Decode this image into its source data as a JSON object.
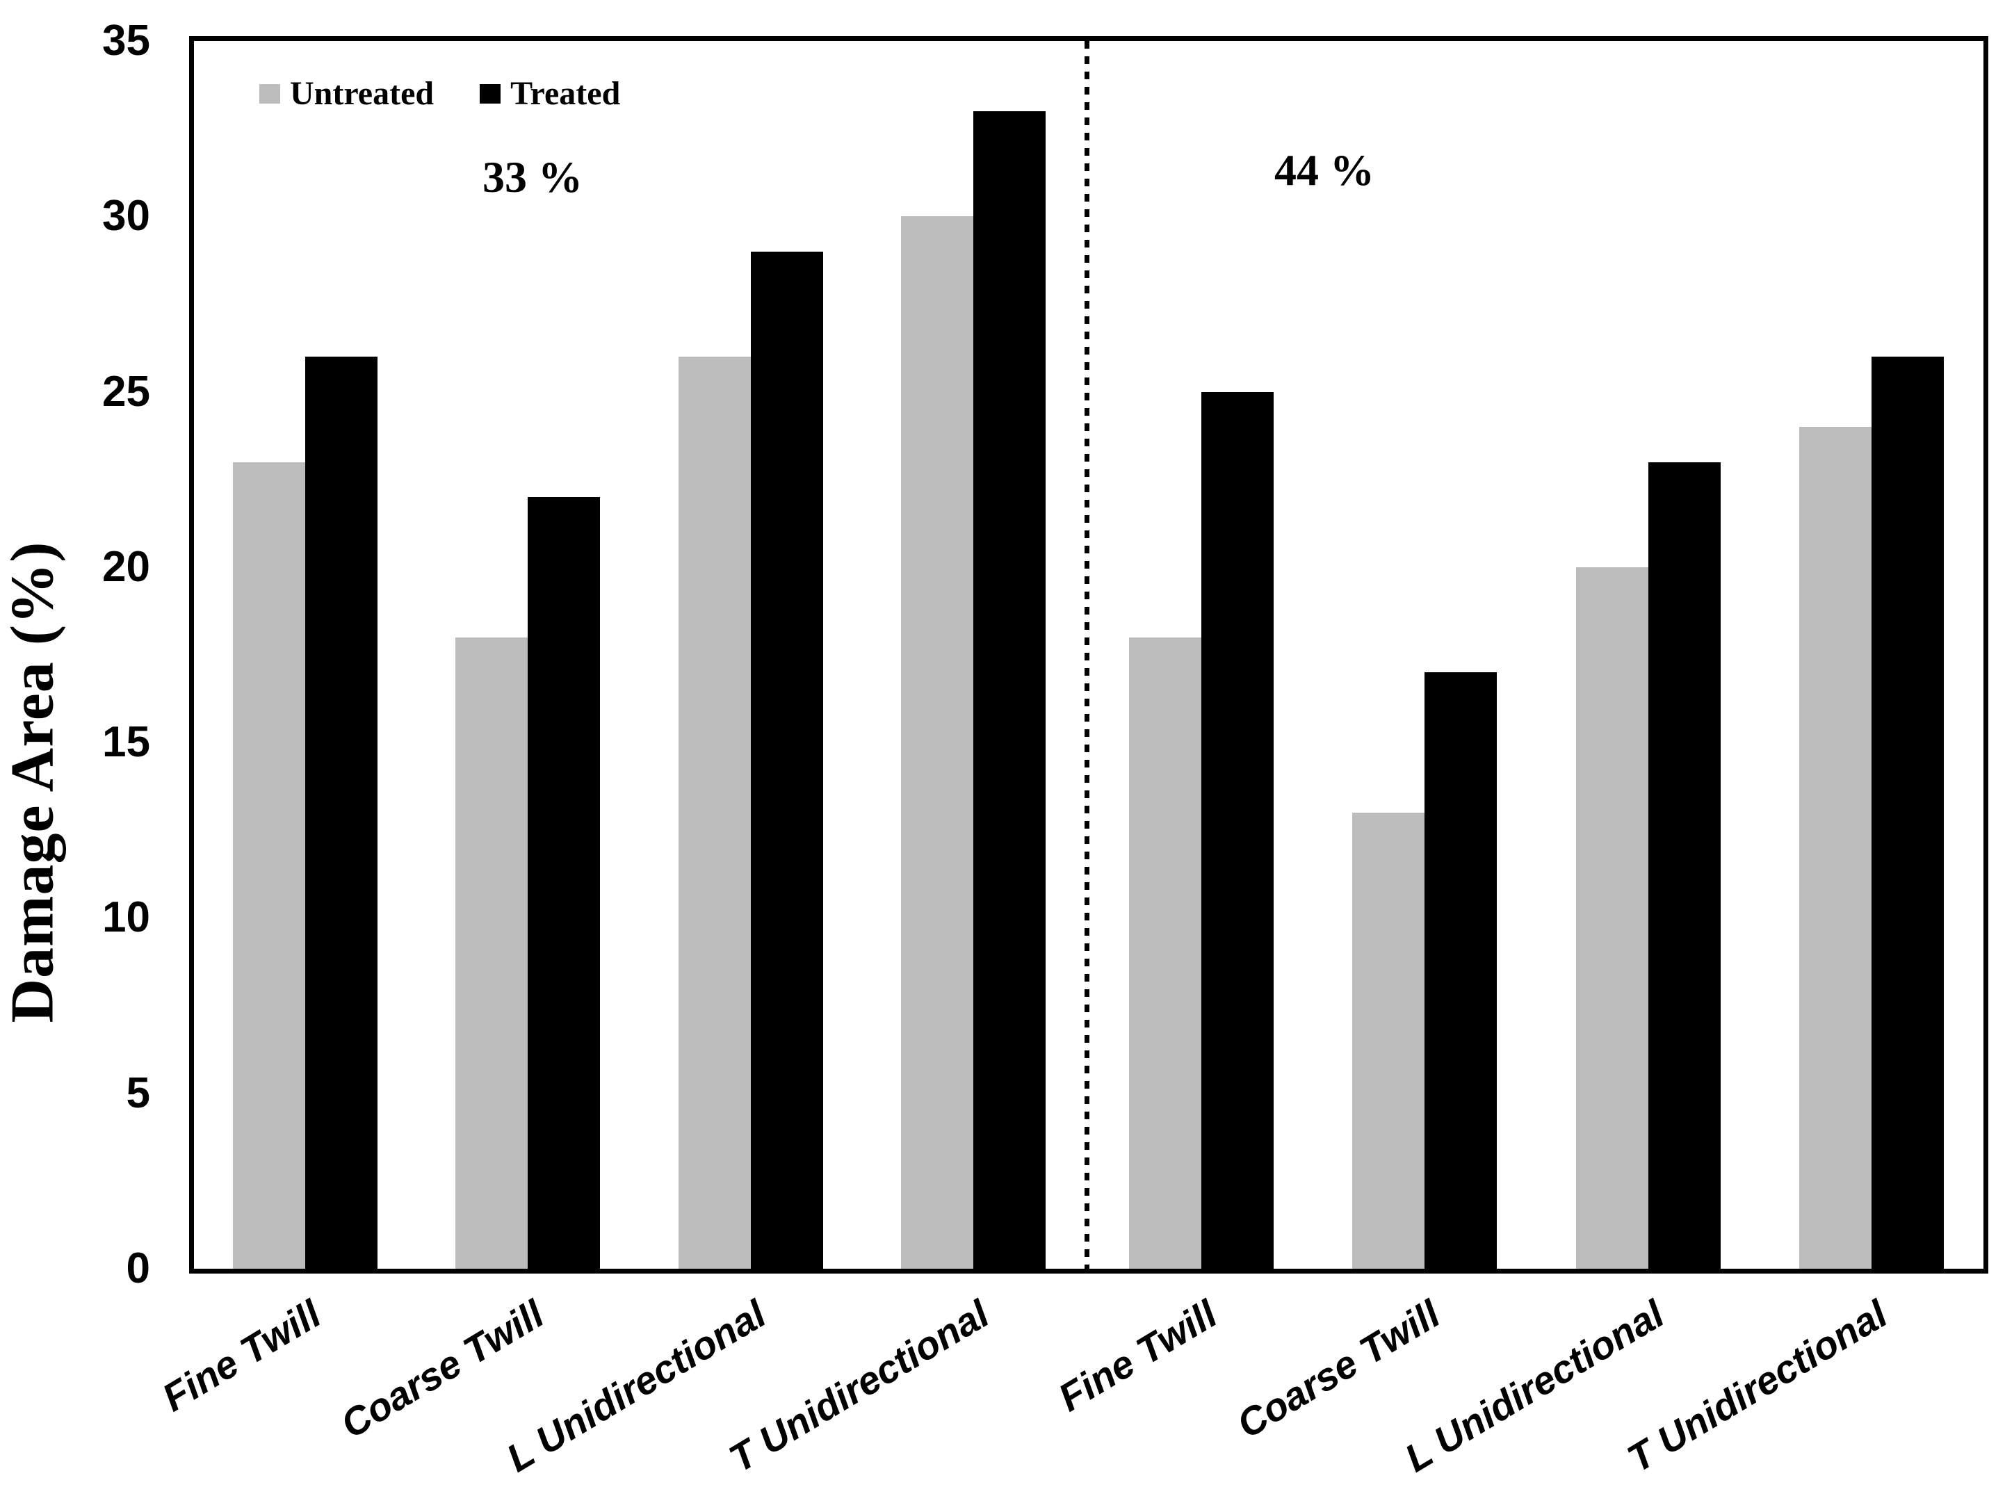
{
  "chart_data": {
    "type": "bar",
    "title": "",
    "ylabel": "Damage Area (%)",
    "xlabel": "",
    "ylim": [
      0,
      35
    ],
    "yticks": [
      0,
      5,
      10,
      15,
      20,
      25,
      30,
      35
    ],
    "grid": false,
    "legend": {
      "position": "top-left",
      "items": [
        {
          "label": "Untreated",
          "color": "#bdbdbd"
        },
        {
          "label": "Treated",
          "color": "#000000"
        }
      ]
    },
    "categories": [
      "Fine Twill",
      "Coarse Twill",
      "L Unidirectional",
      "T Unidirectional"
    ],
    "sections": [
      {
        "annotation": "33 %",
        "series": [
          {
            "name": "Untreated",
            "color": "#bdbdbd",
            "values": [
              23,
              18,
              26,
              30
            ]
          },
          {
            "name": "Treated",
            "color": "#000000",
            "values": [
              26,
              22,
              29,
              33
            ]
          }
        ]
      },
      {
        "annotation": "44 %",
        "series": [
          {
            "name": "Untreated",
            "color": "#bdbdbd",
            "values": [
              18,
              13,
              20,
              24
            ]
          },
          {
            "name": "Treated",
            "color": "#000000",
            "values": [
              25,
              17,
              23,
              26
            ]
          }
        ]
      }
    ],
    "divider": {
      "style": "dotted-vertical",
      "position": "between-sections"
    },
    "axis_color": "#000000",
    "background": "#ffffff"
  }
}
